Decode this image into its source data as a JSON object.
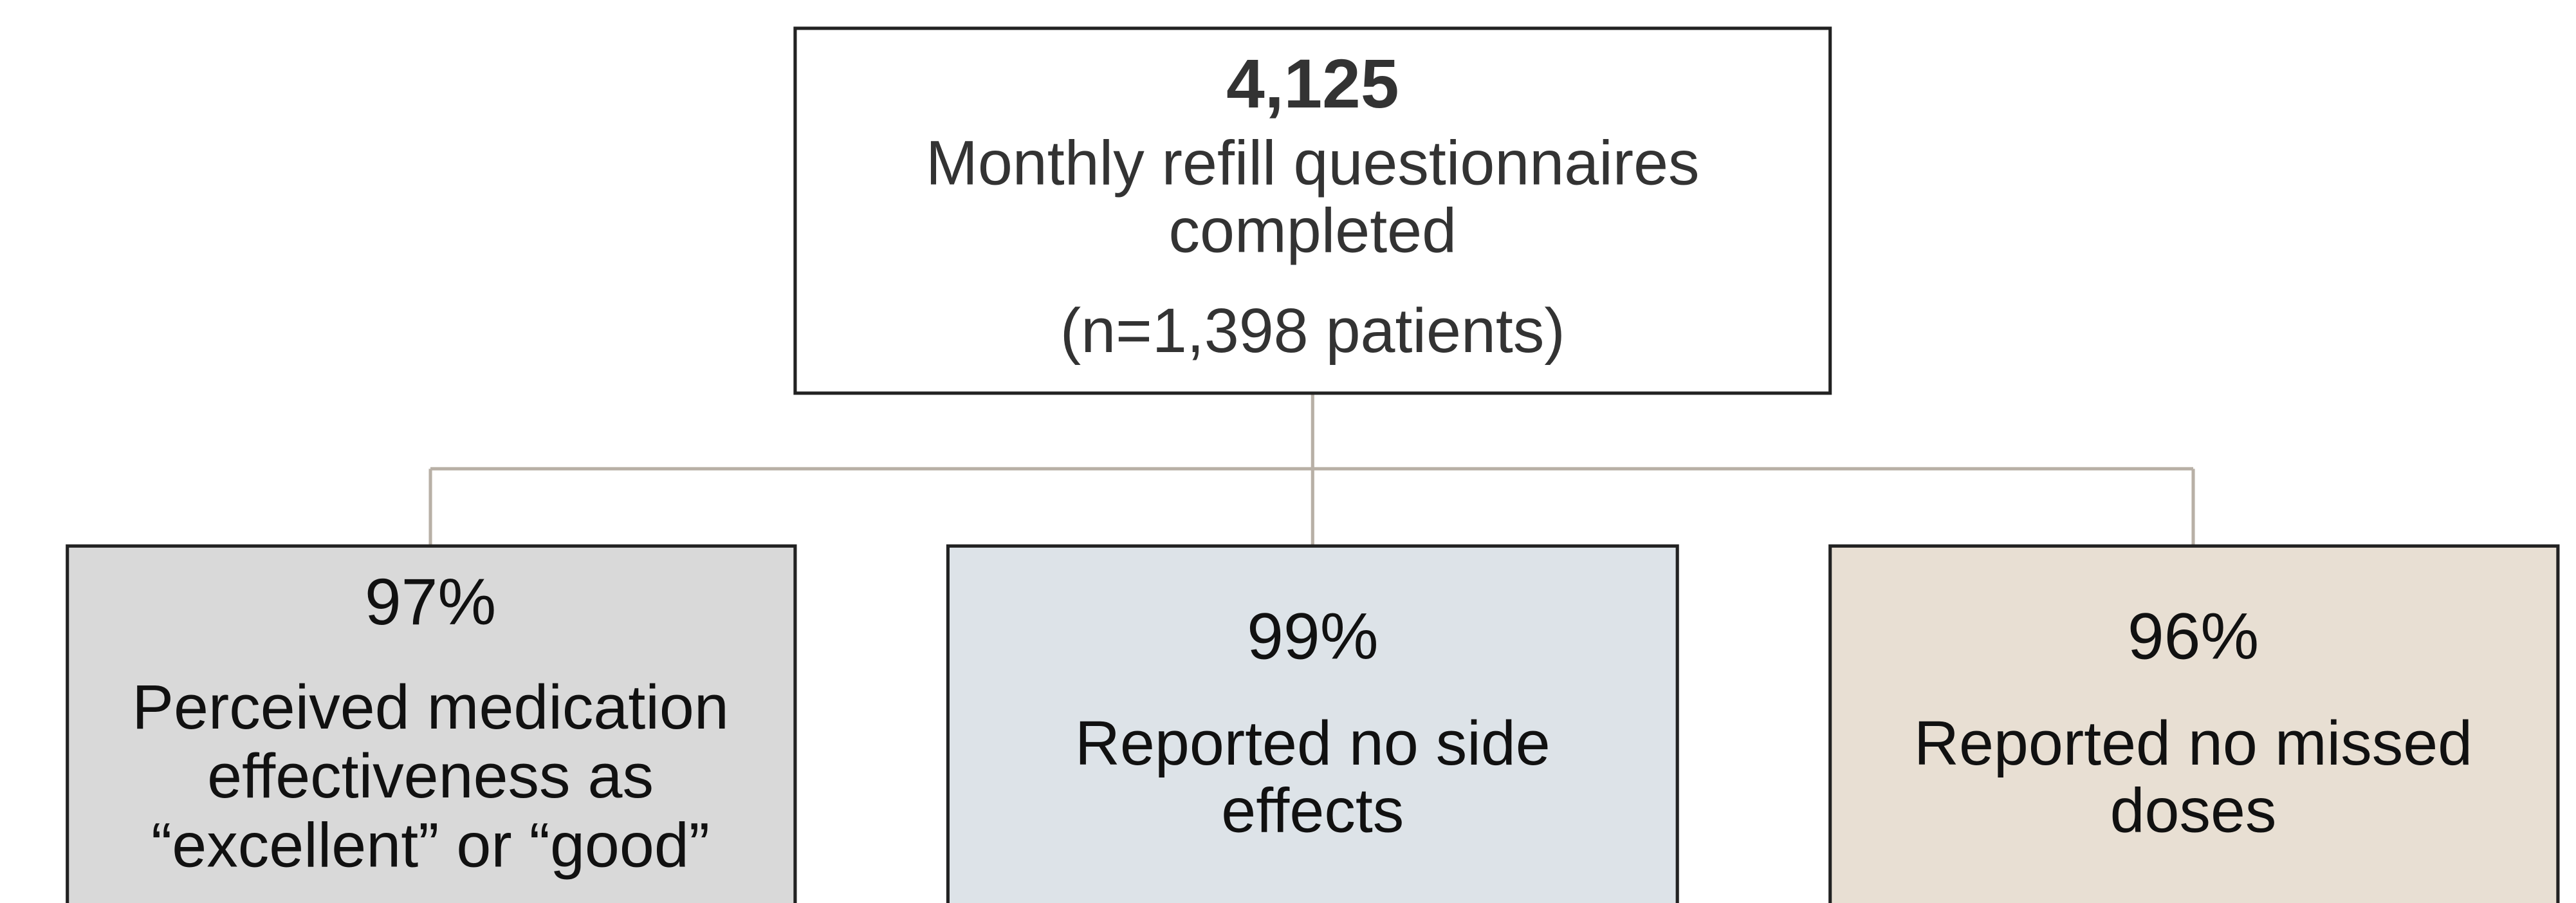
{
  "top": {
    "value": "4,125",
    "label_lines": [
      "Monthly refill questionnaires",
      "completed"
    ],
    "note": "(n=1,398 patients)"
  },
  "nodes": [
    {
      "value": "97%",
      "label_lines": [
        "Perceived medication",
        "effectiveness as",
        "“excellent” or “good”"
      ]
    },
    {
      "value": "99%",
      "label_lines": [
        "Reported no side",
        "effects"
      ]
    },
    {
      "value": "96%",
      "label_lines": [
        "Reported no missed",
        "doses"
      ]
    }
  ]
}
